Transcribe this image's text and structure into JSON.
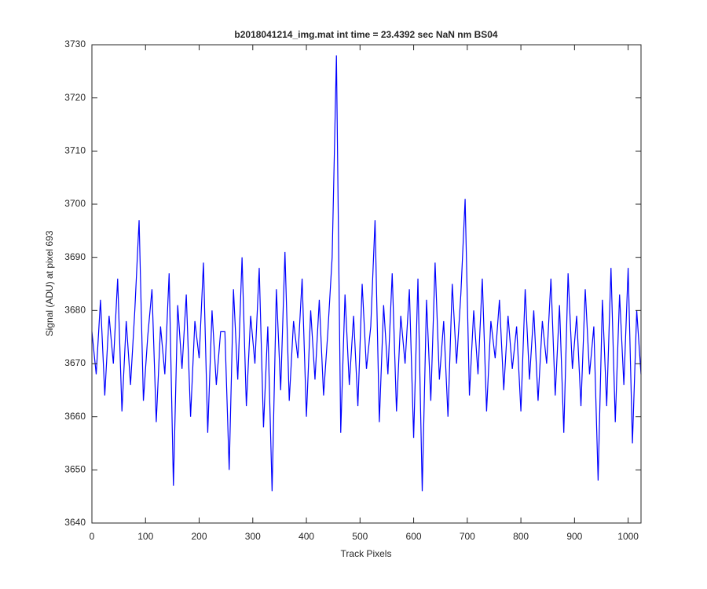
{
  "chart_data": {
    "type": "line",
    "title": "b2018041214_img.mat int time = 23.4392 sec  NaN nm BS04",
    "x_label": "Track Pixels",
    "y_label": "Signal (ADU) at pixel 693",
    "xlim": [
      0,
      1024
    ],
    "ylim": [
      3640,
      3730
    ],
    "xticks": [
      0,
      100,
      200,
      300,
      400,
      500,
      600,
      700,
      800,
      900,
      1000
    ],
    "yticks": [
      3640,
      3650,
      3660,
      3670,
      3680,
      3690,
      3700,
      3710,
      3720,
      3730
    ],
    "x": [
      0,
      8,
      16,
      24,
      32,
      40,
      48,
      56,
      64,
      72,
      80,
      88,
      96,
      104,
      112,
      120,
      128,
      136,
      144,
      152,
      160,
      168,
      176,
      184,
      192,
      200,
      208,
      216,
      224,
      232,
      240,
      248,
      256,
      264,
      272,
      280,
      288,
      296,
      304,
      312,
      320,
      328,
      336,
      344,
      352,
      360,
      368,
      376,
      384,
      392,
      400,
      408,
      416,
      424,
      432,
      440,
      448,
      456,
      464,
      472,
      480,
      488,
      496,
      504,
      512,
      520,
      528,
      536,
      544,
      552,
      560,
      568,
      576,
      584,
      592,
      600,
      608,
      616,
      624,
      632,
      640,
      648,
      656,
      664,
      672,
      680,
      688,
      696,
      704,
      712,
      720,
      728,
      736,
      744,
      752,
      760,
      768,
      776,
      784,
      792,
      800,
      808,
      816,
      824,
      832,
      840,
      848,
      856,
      864,
      872,
      880,
      888,
      896,
      904,
      912,
      920,
      928,
      936,
      944,
      952,
      960,
      968,
      976,
      984,
      992,
      1000,
      1008,
      1016,
      1024
    ],
    "series": [
      {
        "name": "signal",
        "color": "#0000ff",
        "values": [
          3676,
          3668,
          3682,
          3664,
          3679,
          3670,
          3686,
          3661,
          3678,
          3666,
          3680,
          3697,
          3663,
          3675,
          3684,
          3659,
          3677,
          3668,
          3687,
          3647,
          3681,
          3669,
          3683,
          3660,
          3678,
          3671,
          3689,
          3657,
          3680,
          3666,
          3676,
          3676,
          3650,
          3684,
          3667,
          3690,
          3662,
          3679,
          3670,
          3688,
          3658,
          3677,
          3646,
          3684,
          3665,
          3691,
          3663,
          3678,
          3671,
          3686,
          3660,
          3680,
          3667,
          3682,
          3664,
          3676,
          3690,
          3728,
          3657,
          3683,
          3666,
          3679,
          3662,
          3685,
          3669,
          3677,
          3697,
          3659,
          3681,
          3668,
          3687,
          3661,
          3679,
          3670,
          3684,
          3656,
          3686,
          3646,
          3682,
          3663,
          3689,
          3667,
          3678,
          3660,
          3685,
          3670,
          3683,
          3701,
          3664,
          3680,
          3668,
          3686,
          3661,
          3678,
          3671,
          3682,
          3665,
          3679,
          3669,
          3677,
          3661,
          3684,
          3667,
          3680,
          3663,
          3678,
          3670,
          3686,
          3664,
          3681,
          3657,
          3687,
          3669,
          3679,
          3662,
          3684,
          3668,
          3677,
          3648,
          3682,
          3662,
          3688,
          3659,
          3683,
          3666,
          3688,
          3655,
          3680,
          3668
        ]
      }
    ]
  }
}
